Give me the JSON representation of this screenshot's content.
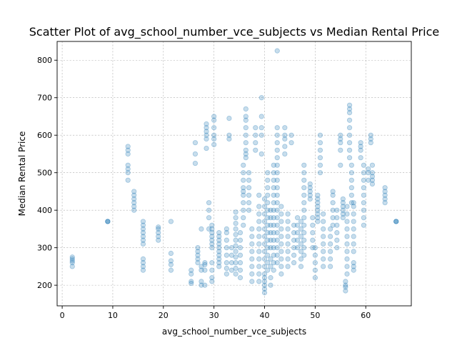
{
  "chart_data": {
    "type": "scatter",
    "title": "Scatter Plot of avg_school_number_vce_subjects vs Median Rental Price",
    "xlabel": "avg_school_number_vce_subjects",
    "ylabel": "Median Rental Price",
    "xlim": [
      -1,
      69
    ],
    "ylim": [
      145,
      850
    ],
    "xticks": [
      0,
      10,
      20,
      30,
      40,
      50,
      60
    ],
    "yticks": [
      200,
      300,
      400,
      500,
      600,
      700,
      800
    ],
    "grid": true,
    "marker_color": "#1f77b4",
    "marker_alpha": 0.25,
    "groups": [
      {
        "x": 2,
        "y": [
          250,
          260,
          265,
          270,
          275
        ]
      },
      {
        "x": 9,
        "y": [
          370,
          370,
          370
        ]
      },
      {
        "x": 13,
        "y": [
          480,
          500,
          510,
          520,
          550,
          560,
          570
        ]
      },
      {
        "x": 14.2,
        "y": [
          400,
          410,
          420,
          430,
          440,
          450
        ]
      },
      {
        "x": 16,
        "y": [
          240,
          250,
          260,
          270,
          310,
          320,
          330,
          340,
          350,
          360,
          370
        ]
      },
      {
        "x": 19,
        "y": [
          320,
          330,
          340,
          350,
          355
        ]
      },
      {
        "x": 21.5,
        "y": [
          240,
          255,
          265,
          285,
          370
        ]
      },
      {
        "x": 25.5,
        "y": [
          205,
          210,
          230,
          240
        ]
      },
      {
        "x": 26.3,
        "y": [
          525,
          550,
          580
        ]
      },
      {
        "x": 26.8,
        "y": [
          260,
          270,
          280,
          290,
          300
        ]
      },
      {
        "x": 27.5,
        "y": [
          200,
          210,
          240,
          250,
          350
        ]
      },
      {
        "x": 28.2,
        "y": [
          200,
          240,
          255,
          260
        ]
      },
      {
        "x": 28.5,
        "y": [
          565,
          590,
          600,
          610,
          620,
          630
        ]
      },
      {
        "x": 29,
        "y": [
          350,
          380,
          400,
          420
        ]
      },
      {
        "x": 29.6,
        "y": [
          210,
          220,
          240,
          260,
          300,
          310,
          320,
          330,
          340,
          350,
          360
        ]
      },
      {
        "x": 30,
        "y": [
          575,
          590,
          600,
          620,
          640,
          650
        ]
      },
      {
        "x": 31,
        "y": [
          250,
          260,
          270,
          280,
          290,
          300,
          310,
          320,
          330,
          340
        ]
      },
      {
        "x": 32.5,
        "y": [
          230,
          245,
          260,
          280,
          300,
          320,
          340,
          350
        ]
      },
      {
        "x": 33,
        "y": [
          590,
          600,
          645
        ]
      },
      {
        "x": 33.5,
        "y": [
          240,
          260,
          280,
          300
        ]
      },
      {
        "x": 34.3,
        "y": [
          230,
          245,
          260,
          275,
          290,
          305,
          320,
          335,
          350,
          365,
          380,
          395
        ]
      },
      {
        "x": 35.2,
        "y": [
          220,
          240,
          260,
          280,
          300,
          320,
          340
        ]
      },
      {
        "x": 35.8,
        "y": [
          360,
          380,
          400,
          420,
          440,
          450,
          460,
          480,
          500,
          520
        ]
      },
      {
        "x": 36.3,
        "y": [
          540,
          550,
          560,
          580,
          600,
          620,
          640,
          650,
          670
        ]
      },
      {
        "x": 36.9,
        "y": [
          400,
          420,
          440,
          460,
          480,
          500
        ]
      },
      {
        "x": 37.5,
        "y": [
          210,
          230,
          250,
          270,
          290,
          310,
          330,
          350
        ]
      },
      {
        "x": 38.2,
        "y": [
          560,
          580,
          600,
          620
        ]
      },
      {
        "x": 38.9,
        "y": [
          210,
          230,
          250,
          270,
          290,
          310,
          330,
          350,
          370,
          390,
          410,
          440
        ]
      },
      {
        "x": 39.4,
        "y": [
          550,
          600,
          620,
          650,
          700
        ]
      },
      {
        "x": 40,
        "y": [
          180,
          190,
          200,
          210,
          220,
          230,
          250,
          270,
          290,
          310,
          330,
          350,
          370,
          390,
          410,
          430
        ]
      },
      {
        "x": 40.6,
        "y": [
          240,
          260,
          280,
          300,
          320,
          340,
          360,
          380,
          400,
          420,
          440,
          460,
          480,
          500
        ]
      },
      {
        "x": 41.2,
        "y": [
          200,
          220,
          250,
          270,
          300,
          320,
          340,
          360,
          380,
          400
        ]
      },
      {
        "x": 41.8,
        "y": [
          240,
          260,
          280,
          300,
          320,
          340,
          360,
          380,
          400,
          420,
          440,
          460,
          480,
          500,
          520
        ]
      },
      {
        "x": 42.5,
        "y": [
          260,
          280,
          300,
          320,
          340,
          360,
          380,
          400,
          420,
          440,
          460,
          480,
          500,
          520,
          540,
          560,
          580,
          600,
          620,
          825
        ]
      },
      {
        "x": 43.3,
        "y": [
          230,
          250,
          270,
          290,
          310,
          330,
          350,
          370,
          390,
          410
        ]
      },
      {
        "x": 44,
        "y": [
          550,
          570,
          590,
          600,
          620
        ]
      },
      {
        "x": 44.6,
        "y": [
          250,
          270,
          290,
          310,
          330,
          350,
          370,
          390
        ]
      },
      {
        "x": 45.3,
        "y": [
          580,
          600
        ]
      },
      {
        "x": 45.8,
        "y": [
          260,
          280,
          300,
          320,
          340,
          360
        ]
      },
      {
        "x": 46.5,
        "y": [
          300,
          320,
          340,
          360,
          380
        ]
      },
      {
        "x": 47.2,
        "y": [
          250,
          270,
          290,
          310,
          330,
          350,
          370
        ]
      },
      {
        "x": 47.8,
        "y": [
          280,
          300,
          320,
          340,
          360,
          380,
          400,
          420,
          440,
          460,
          480,
          500,
          520
        ]
      },
      {
        "x": 49,
        "y": [
          430,
          440,
          450,
          460,
          470
        ]
      },
      {
        "x": 49.5,
        "y": [
          300,
          320,
          340,
          360,
          380
        ]
      },
      {
        "x": 50,
        "y": [
          220,
          240,
          260,
          280,
          300
        ]
      },
      {
        "x": 50.5,
        "y": [
          370,
          380,
          390,
          400,
          410,
          420,
          430,
          440
        ]
      },
      {
        "x": 51,
        "y": [
          500,
          520,
          540,
          560,
          580,
          600
        ]
      },
      {
        "x": 51.6,
        "y": [
          250,
          270,
          290,
          310,
          330,
          350,
          370,
          390
        ]
      },
      {
        "x": 53,
        "y": [
          250,
          270,
          290,
          310,
          330,
          350
        ]
      },
      {
        "x": 53.5,
        "y": [
          360,
          380,
          400,
          420,
          440,
          450
        ]
      },
      {
        "x": 54.3,
        "y": [
          300,
          320,
          340,
          360,
          380,
          400
        ]
      },
      {
        "x": 55,
        "y": [
          520,
          560,
          580,
          590,
          600
        ]
      },
      {
        "x": 55.5,
        "y": [
          380,
          390,
          400,
          410,
          420,
          430
        ]
      },
      {
        "x": 56,
        "y": [
          185,
          195,
          200,
          210
        ]
      },
      {
        "x": 56.3,
        "y": [
          230,
          250,
          270,
          290,
          310,
          330,
          350,
          370,
          390,
          410
        ]
      },
      {
        "x": 56.8,
        "y": [
          540,
          560,
          580,
          600,
          620,
          640,
          660,
          670,
          680
        ]
      },
      {
        "x": 57.2,
        "y": [
          420,
          440,
          460,
          480,
          500,
          520
        ]
      },
      {
        "x": 57.6,
        "y": [
          240,
          250,
          260,
          290,
          310,
          330,
          350,
          370,
          390,
          410,
          420
        ]
      },
      {
        "x": 59,
        "y": [
          540,
          560,
          570,
          580
        ]
      },
      {
        "x": 59.6,
        "y": [
          360,
          380,
          400,
          420,
          440,
          460,
          480,
          500,
          520
        ]
      },
      {
        "x": 60.5,
        "y": [
          480,
          500,
          510
        ]
      },
      {
        "x": 61,
        "y": [
          580,
          590,
          600
        ]
      },
      {
        "x": 61.3,
        "y": [
          470,
          480,
          490,
          500,
          520
        ]
      },
      {
        "x": 63.8,
        "y": [
          420,
          430,
          440,
          450,
          460
        ]
      },
      {
        "x": 66,
        "y": [
          370,
          370,
          370
        ]
      }
    ]
  }
}
